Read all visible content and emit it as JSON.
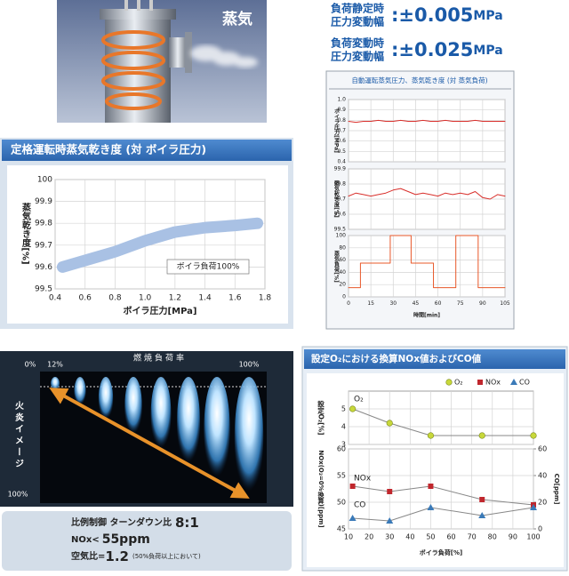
{
  "illustration": {
    "label": "蒸気"
  },
  "specs": [
    {
      "line1": "負荷静定時",
      "line2": "圧力変動幅",
      "value": ":±0.005",
      "unit": "MPa"
    },
    {
      "line1": "負荷変動時",
      "line2": "圧力変動幅",
      "value": ":±0.025",
      "unit": "MPa"
    }
  ],
  "time_panel_title": "自動運転蒸気圧力、蒸気乾き度 (対 蒸気負荷)",
  "flame": {
    "title": "燃焼負荷率",
    "scale_start": "0%",
    "first_flame": "12%",
    "last_flame": "100%",
    "side_label": "火炎イメージ",
    "side_bottom": "100%"
  },
  "control": {
    "line1_prefix": "比例制御 ターンダウン比",
    "line1_value": "8:1",
    "line2_prefix": "NOx<",
    "line2_value": "55ppm",
    "line3_prefix": "空気比=",
    "line3_value": "1.2",
    "line3_note": "(50%負荷以上において)"
  },
  "chart_data": [
    {
      "type": "line",
      "title": "定格運転時蒸気乾き度 (対 ボイラ圧力)",
      "xlabel": "ボイラ圧力[MPa]",
      "ylabel": "蒸気乾き度[%]",
      "x": [
        0.45,
        0.6,
        0.8,
        1.0,
        1.2,
        1.4,
        1.6,
        1.75
      ],
      "series": [
        {
          "name": "ボイラ負荷100%",
          "color": "#a9c1e4",
          "values": [
            99.6,
            99.63,
            99.67,
            99.72,
            99.76,
            99.78,
            99.79,
            99.8
          ]
        }
      ],
      "xlim": [
        0.4,
        1.8
      ],
      "xticks": [
        0.4,
        0.6,
        0.8,
        {
          "value": 1,
          "label": "1.0"
        },
        1.2,
        1.4,
        1.6,
        1.8
      ],
      "ylim": [
        99.5,
        100
      ],
      "yticks": [
        99.5,
        99.6,
        99.7,
        99.8,
        99.9,
        100
      ],
      "grid": true
    },
    {
      "type": "line",
      "ylabel": "ボイラ圧力[MPa]",
      "x": [
        0,
        5,
        10,
        15,
        20,
        25,
        30,
        35,
        40,
        45,
        50,
        55,
        60,
        65,
        70,
        75,
        80,
        85,
        90,
        95,
        100,
        105
      ],
      "series": [
        {
          "color": "#d9302c",
          "values": [
            0.79,
            0.78,
            0.79,
            0.79,
            0.8,
            0.79,
            0.79,
            0.8,
            0.79,
            0.79,
            0.8,
            0.79,
            0.79,
            0.8,
            0.79,
            0.79,
            0.79,
            0.8,
            0.79,
            0.79,
            0.79,
            0.79
          ]
        }
      ],
      "ylim": [
        0.4,
        1.0
      ],
      "yticks": [
        0.4,
        0.5,
        0.6,
        0.7,
        0.8,
        0.9,
        {
          "value": 1,
          "label": "1.0"
        }
      ],
      "grid": true
    },
    {
      "type": "line",
      "ylabel": "蒸気乾き度[%]",
      "x": [
        0,
        5,
        10,
        15,
        20,
        25,
        30,
        35,
        40,
        45,
        50,
        55,
        60,
        65,
        70,
        75,
        80,
        85,
        90,
        95,
        100,
        105
      ],
      "series": [
        {
          "color": "#d9302c",
          "values": [
            99.72,
            99.74,
            99.73,
            99.72,
            99.73,
            99.74,
            99.76,
            99.77,
            99.75,
            99.73,
            99.74,
            99.73,
            99.72,
            99.74,
            99.73,
            99.74,
            99.73,
            99.75,
            99.71,
            99.7,
            99.73,
            99.72
          ]
        }
      ],
      "ylim": [
        99.5,
        99.9
      ],
      "yticks": [
        99.5,
        99.6,
        99.7,
        99.8,
        99.9
      ],
      "grid": true
    },
    {
      "type": "line",
      "xlabel": "時間[min]",
      "ylabel": "蒸気負荷[%]",
      "x": [
        0,
        8,
        8,
        28,
        28,
        42,
        42,
        57,
        57,
        72,
        72,
        87,
        87,
        105
      ],
      "series": [
        {
          "color": "#e8582a",
          "values": [
            15,
            15,
            55,
            55,
            100,
            100,
            55,
            55,
            15,
            15,
            100,
            100,
            15,
            15
          ]
        }
      ],
      "xlim": [
        0,
        105
      ],
      "xticks": [
        0,
        15,
        30,
        45,
        60,
        75,
        90,
        105
      ],
      "ylim": [
        0,
        100
      ],
      "yticks": [
        0,
        20,
        40,
        60,
        80,
        100
      ],
      "grid": true
    },
    {
      "type": "line",
      "title": "設定O₂における換算NOx値およびCO値",
      "ylabel": "設定O₂[%]",
      "x": [
        12,
        30,
        50,
        75,
        100
      ],
      "series": [
        {
          "name": "O₂",
          "color": "#c8d83a",
          "line_color": "#888888",
          "marker": "circle",
          "values": [
            5.0,
            4.2,
            3.5,
            3.5,
            3.5
          ]
        }
      ],
      "ylim": [
        3,
        6
      ],
      "yticks": [
        3,
        4,
        5
      ],
      "grid": true
    },
    {
      "type": "line",
      "xlabel": "ボイラ負荷[%]",
      "ylabel": "NOx(O₂=0%換算)[ppm]",
      "y2label": "CO[ppm]",
      "x": [
        12,
        30,
        50,
        75,
        100
      ],
      "series": [
        {
          "name": "NOx",
          "color": "#c0272d",
          "line_color": "#888888",
          "marker": "square",
          "values": [
            53,
            52,
            53,
            50.5,
            49.5
          ]
        },
        {
          "name": "CO",
          "color": "#3a7ab8",
          "line_color": "#888888",
          "marker": "triangle",
          "axis": "y2",
          "values": [
            8,
            6,
            16,
            10,
            16
          ]
        }
      ],
      "xlim": [
        10,
        100
      ],
      "xticks": [
        10,
        20,
        30,
        40,
        50,
        60,
        70,
        80,
        90,
        100
      ],
      "ylim": [
        45,
        60
      ],
      "yticks": [
        45,
        50,
        55,
        60
      ],
      "y2lim": [
        0,
        60
      ],
      "y2ticks": [
        0,
        20,
        40,
        60
      ],
      "grid": true
    }
  ]
}
